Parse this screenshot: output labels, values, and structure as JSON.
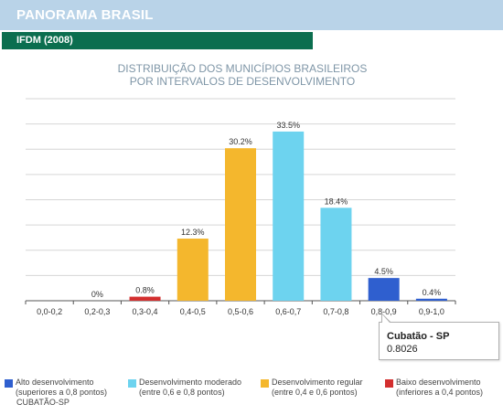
{
  "header": {
    "title": "PANORAMA BRASIL",
    "subtitle": "IFDM (2008)"
  },
  "chart_title": [
    "DISTRIBUIÇÃO DOS MUNICÍPIOS BRASILEIROS",
    "POR INTERVALOS DE DESENVOLVIMENTO"
  ],
  "chart_data": {
    "type": "bar",
    "title": "DISTRIBUIÇÃO DOS MUNICÍPIOS BRASILEIROS POR INTERVALOS DE DESENVOLVIMENTO",
    "categories": [
      "0,0-0,2",
      "0,2-0,3",
      "0,3-0,4",
      "0,4-0,5",
      "0,5-0,6",
      "0,6-0,7",
      "0,7-0,8",
      "0,8-0,9",
      "0,9-1,0"
    ],
    "values": [
      0,
      0,
      0.8,
      12.3,
      30.2,
      33.5,
      18.4,
      4.5,
      0.4
    ],
    "data_labels": [
      "",
      "0%",
      "0.8%",
      "12.3%",
      "30.2%",
      "33.5%",
      "18.4%",
      "4.5%",
      "0.4%"
    ],
    "bar_colors": [
      "#d32f2f",
      "#d32f2f",
      "#d32f2f",
      "#f4b72d",
      "#f4b72d",
      "#6dd3ef",
      "#6dd3ef",
      "#2f5fcf",
      "#2f5fcf"
    ],
    "ylim": [
      0,
      40
    ],
    "grid": true,
    "legend": [
      {
        "color": "#2f5fcf",
        "line1": "Alto desenvolvimento",
        "line2": "(superiores a 0,8 pontos)"
      },
      {
        "color": "#6dd3ef",
        "line1": "Desenvolvimento moderado",
        "line2": "(entre 0,6 e 0,8 pontos)"
      },
      {
        "color": "#f4b72d",
        "line1": "Desenvolvimento regular",
        "line2": "(entre 0,4 e 0,6 pontos)"
      },
      {
        "color": "#d32f2f",
        "line1": "Baixo desenvolvimento",
        "line2": "(inferiores a 0,4 pontos)"
      }
    ],
    "legend_position": "bottom"
  },
  "tooltip": {
    "title": "Cubatão - SP",
    "value": "0.8026"
  },
  "city_note": "CUBATÃO-SP"
}
